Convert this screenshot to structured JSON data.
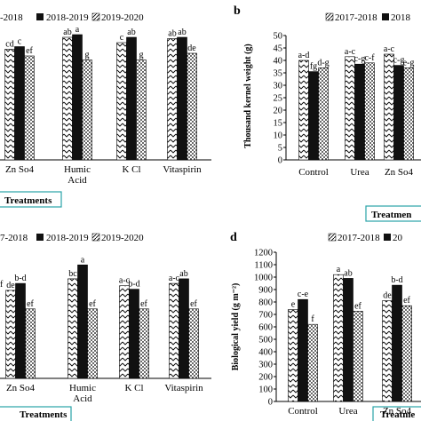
{
  "colors": {
    "bar_2017": "#ffffff",
    "bar_2018": "#111111",
    "bar_2019": "#ffffff",
    "treatments_box": "#2aa3a8",
    "axis": "#000000"
  },
  "legend_labels": {
    "y2017": "2017-2018",
    "y2018": "2018-2019",
    "y2019": "2019-2020"
  },
  "chart_data": [
    {
      "panel": "a",
      "type": "bar",
      "categories": [
        "Zn So4",
        "Humic Acid",
        "K Cl",
        "Vitaspirin"
      ],
      "legend": [
        "-2018",
        "2018-2019",
        "2019-2020"
      ],
      "letters": [
        [
          "cd",
          "c",
          "ef"
        ],
        [
          "ab",
          "a",
          "g"
        ],
        [
          "c",
          "ab",
          "g"
        ],
        [
          "ab",
          "ab",
          "de"
        ]
      ],
      "series": [
        {
          "name": "2017-2018",
          "values": [
            41.5,
            46.0,
            44.0,
            45.5
          ]
        },
        {
          "name": "2018-2019",
          "values": [
            42.5,
            47.0,
            46.0,
            46.0
          ]
        },
        {
          "name": "2019-2020",
          "values": [
            39.0,
            37.5,
            37.5,
            40.0
          ]
        }
      ],
      "xlabel": "Treatments"
    },
    {
      "panel": "b",
      "type": "bar",
      "categories": [
        "Control",
        "Urea",
        "Zn So4"
      ],
      "legend": [
        "2017-2018",
        "2018"
      ],
      "letters": [
        [
          "a-d",
          "fg",
          "d-g"
        ],
        [
          "a-c",
          "c-g",
          "c-f"
        ],
        [
          "a-c",
          "c-g",
          "e-g"
        ]
      ],
      "series": [
        {
          "name": "2017-2018",
          "values": [
            40.0,
            41.5,
            42.5
          ]
        },
        {
          "name": "2018-2019",
          "values": [
            35.5,
            38.5,
            38.0
          ]
        },
        {
          "name": "2019-2020",
          "values": [
            37.0,
            39.0,
            37.0
          ]
        }
      ],
      "ylabel": "Thousand kernel weight (g)",
      "ylim": [
        0,
        50
      ],
      "yticks": [
        "0",
        "5",
        "10",
        "15",
        "20",
        "25",
        "30",
        "35",
        "40",
        "45",
        "50"
      ],
      "xlabel": "Treatmen"
    },
    {
      "panel": "c",
      "type": "bar",
      "categories": [
        "Zn So4",
        "Humic Acid",
        "K Cl",
        "Vitaspirin"
      ],
      "legend": [
        "7-2018",
        "2018-2019",
        "2019-2020"
      ],
      "letters": [
        [
          "de",
          "b-d",
          "ef"
        ],
        [
          "bc",
          "a",
          "ef"
        ],
        [
          "a-c",
          "b-d",
          "ef"
        ],
        [
          "a-c",
          "ab",
          "ef"
        ]
      ],
      "series": [
        {
          "name": "2017-2018",
          "values": [
            880,
            930,
            900,
            910
          ]
        },
        {
          "name": "2018-2019",
          "values": [
            910,
            990,
            885,
            930
          ]
        },
        {
          "name": "2019-2020",
          "values": [
            800,
            800,
            800,
            800
          ]
        }
      ],
      "xlabel": "Treatments",
      "extra_letter": "f"
    },
    {
      "panel": "d",
      "type": "bar",
      "categories": [
        "Control",
        "Urea",
        "Zn So4"
      ],
      "legend": [
        "2017-2018",
        "20"
      ],
      "letters": [
        [
          "e",
          "c-e",
          "f"
        ],
        [
          "a",
          "ab",
          "ef"
        ],
        [
          "de",
          "b-d",
          "ef"
        ]
      ],
      "series": [
        {
          "name": "2017-2018",
          "values": [
            740,
            1020,
            810
          ]
        },
        {
          "name": "2018-2019",
          "values": [
            820,
            990,
            935
          ]
        },
        {
          "name": "2019-2020",
          "values": [
            620,
            725,
            770
          ]
        }
      ],
      "ylabel": "Biological yield (g m⁻²)",
      "ylim": [
        0,
        1200
      ],
      "yticks": [
        "0",
        "100",
        "200",
        "300",
        "400",
        "500",
        "600",
        "700",
        "800",
        "900",
        "1000",
        "1100",
        "1200"
      ],
      "xlabel": "Treatme"
    }
  ]
}
